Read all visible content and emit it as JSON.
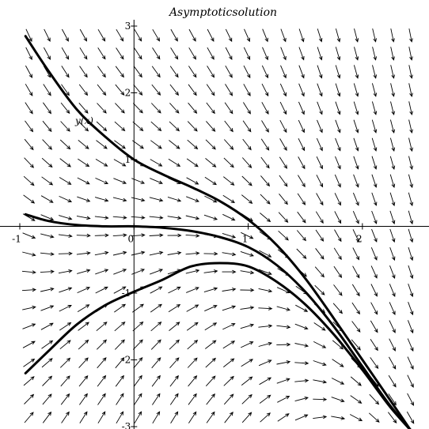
{
  "chart_data": {
    "type": "line",
    "title": "Asymptoticsolution",
    "curve_label": "y(x)",
    "xlim": [
      -1.0,
      2.5
    ],
    "ylim": [
      -3.0,
      3.0
    ],
    "x_ticks": [
      {
        "value": -1,
        "label": "-1"
      },
      {
        "value": 0,
        "label": "0"
      },
      {
        "value": 1,
        "label": "1"
      },
      {
        "value": 2,
        "label": "2"
      }
    ],
    "y_ticks": [
      {
        "value": -3,
        "label": "-3"
      },
      {
        "value": -2,
        "label": "-2"
      },
      {
        "value": -1,
        "label": "-1"
      },
      {
        "value": 1,
        "label": "1"
      },
      {
        "value": 2,
        "label": "2"
      },
      {
        "value": 3,
        "label": "3"
      }
    ],
    "direction_field": {
      "equation": "dy/dx = -y - x^2",
      "columns": 22,
      "rows": 22
    },
    "series": [
      {
        "x": [
          -0.95,
          -0.75,
          -0.5,
          -0.25,
          0.0,
          0.25,
          0.5,
          0.75,
          1.0,
          1.25,
          1.5,
          1.75,
          2.0,
          2.25,
          2.5
        ],
        "y": [
          2.85,
          2.33,
          1.75,
          1.34,
          1.0,
          0.78,
          0.59,
          0.38,
          0.1,
          -0.28,
          -0.78,
          -1.38,
          -2.0,
          -2.62,
          -3.25
        ]
      },
      {
        "x": [
          -0.95,
          -0.75,
          -0.5,
          -0.25,
          0.0,
          0.25,
          0.5,
          0.75,
          1.0,
          1.25,
          1.5,
          1.75,
          2.0,
          2.25,
          2.5
        ],
        "y": [
          0.18,
          0.08,
          0.02,
          0.0,
          0.0,
          -0.02,
          -0.07,
          -0.16,
          -0.31,
          -0.58,
          -0.98,
          -1.5,
          -2.1,
          -2.7,
          -3.2
        ]
      },
      {
        "x": [
          -0.95,
          -0.75,
          -0.5,
          -0.25,
          0.0,
          0.25,
          0.5,
          0.75,
          1.0,
          1.25,
          1.5,
          1.75,
          2.0,
          2.25,
          2.5
        ],
        "y": [
          -2.2,
          -1.87,
          -1.47,
          -1.18,
          -0.98,
          -0.8,
          -0.6,
          -0.55,
          -0.6,
          -0.83,
          -1.17,
          -1.62,
          -2.15,
          -2.72,
          -3.2
        ]
      }
    ]
  }
}
